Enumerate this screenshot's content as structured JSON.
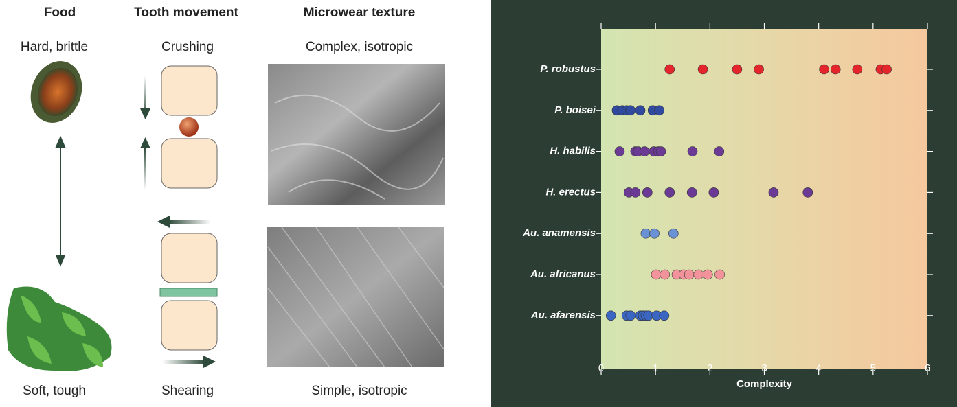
{
  "panel_a": {
    "headers": [
      "Food",
      "Tooth movement",
      "Microwear texture"
    ],
    "top_labels": [
      "Hard, brittle",
      "Crushing",
      "Complex, isotropic"
    ],
    "bottom_labels": [
      "Soft, tough",
      "Shearing",
      "Simple, isotropic"
    ]
  },
  "chart_data": {
    "type": "scatter",
    "x_label": "Complexity",
    "xlim": [
      0,
      6
    ],
    "xticks": [
      0,
      1,
      2,
      3,
      4,
      5,
      6
    ],
    "series": [
      {
        "name": "P. robustus",
        "color": "#e4262c",
        "values": [
          1.26,
          1.87,
          2.5,
          2.9,
          4.1,
          4.31,
          4.71,
          5.14,
          5.25
        ]
      },
      {
        "name": "P. boisei",
        "color": "#2f4a9e",
        "values": [
          0.29,
          0.39,
          0.47,
          0.54,
          0.72,
          0.95,
          1.07
        ]
      },
      {
        "name": "H. habilis",
        "color": "#6b3a95",
        "values": [
          0.34,
          0.63,
          0.68,
          0.8,
          0.97,
          1.05,
          1.1,
          1.68,
          2.17
        ]
      },
      {
        "name": "H. erectus",
        "color": "#6b3a95",
        "values": [
          0.51,
          0.63,
          0.85,
          1.26,
          1.67,
          2.07,
          3.17,
          3.8
        ]
      },
      {
        "name": "Au. anamensis",
        "color": "#6a92d4",
        "values": [
          0.82,
          0.98,
          1.33
        ]
      },
      {
        "name": "Au. africanus",
        "color": "#f2939c",
        "values": [
          1.01,
          1.17,
          1.39,
          1.52,
          1.62,
          1.79,
          1.96,
          2.18
        ]
      },
      {
        "name": "Au. afarensis",
        "color": "#3b66c2",
        "values": [
          0.18,
          0.47,
          0.54,
          0.72,
          0.77,
          0.82,
          0.87,
          1.02,
          1.16
        ]
      }
    ]
  }
}
